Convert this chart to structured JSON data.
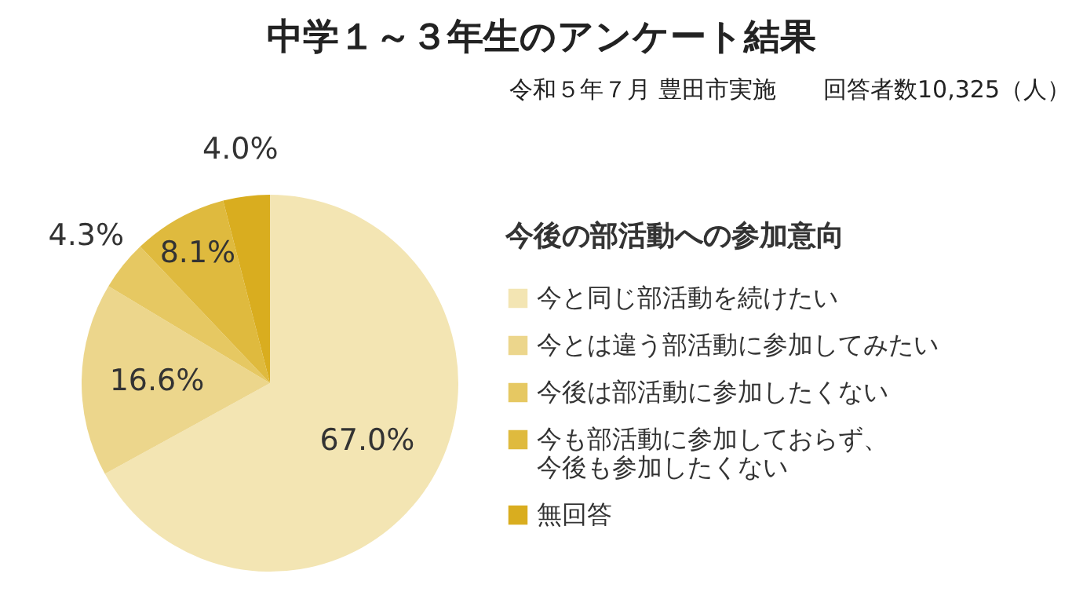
{
  "chart_data": {
    "type": "pie",
    "title": "中学１～３年生のアンケート結果",
    "subtitle": "令和５年７月 豊田市実施　　回答者数10,325（人）",
    "legend_title": "今後の部活動への参加意向",
    "legend": "right",
    "categories": [
      "今と同じ部活動を続けたい",
      "今とは違う部活動に参加してみたい",
      "今後は部活動に参加したくない",
      "今も部活動に参加しておらず、今後も参加したくない",
      "無回答"
    ],
    "values": [
      67.0,
      16.6,
      4.3,
      8.1,
      4.0
    ],
    "colors": [
      "#f3e5b3",
      "#ecd68c",
      "#e6c862",
      "#dfba3e",
      "#d9ad1f"
    ],
    "value_labels": [
      "67.0%",
      "16.6%",
      "4.3%",
      "8.1%",
      "4.0%"
    ]
  }
}
